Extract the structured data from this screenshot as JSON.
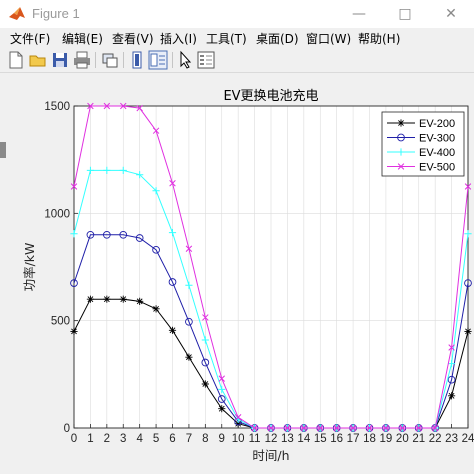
{
  "window": {
    "title": "Figure 1",
    "icon": "matlab-logo-icon",
    "controls": [
      "minimize-icon",
      "maximize-icon",
      "close-icon"
    ]
  },
  "menu": {
    "items": [
      "文件(F)",
      "编辑(E)",
      "查看(V)",
      "插入(I)",
      "工具(T)",
      "桌面(D)",
      "窗口(W)",
      "帮助(H)"
    ]
  },
  "toolbar": {
    "icons": [
      "new-figure-icon",
      "open-file-icon",
      "save-icon",
      "print-icon",
      "link-figure-icon",
      "hide-plot-tools-icon",
      "show-plot-tools-icon",
      "edit-plot-arrow-icon",
      "insert-legend-icon"
    ]
  },
  "colors": {
    "EV-200": "#000000",
    "EV-300": "#1f1fa8",
    "EV-400": "#33ffff",
    "EV-500": "#e030e0"
  },
  "chart_data": {
    "type": "line",
    "title": "EV更换电池充电",
    "xlabel": "时间/h",
    "ylabel": "功率/kW",
    "xlim": [
      0,
      24
    ],
    "ylim": [
      0,
      1500
    ],
    "xticks": [
      0,
      1,
      2,
      3,
      4,
      5,
      6,
      7,
      8,
      9,
      10,
      11,
      12,
      13,
      14,
      15,
      16,
      17,
      18,
      19,
      20,
      21,
      22,
      23,
      24
    ],
    "yticks": [
      0,
      500,
      1000,
      1500
    ],
    "grid": true,
    "legend_position": "top-right",
    "x": [
      0,
      1,
      2,
      3,
      4,
      5,
      6,
      7,
      8,
      9,
      10,
      11,
      12,
      13,
      14,
      15,
      16,
      17,
      18,
      19,
      20,
      21,
      22,
      23,
      24
    ],
    "series": [
      {
        "name": "EV-200",
        "marker": "*",
        "values": [
          450,
          600,
          600,
          600,
          590,
          555,
          455,
          330,
          205,
          90,
          20,
          0,
          0,
          0,
          0,
          0,
          0,
          0,
          0,
          0,
          0,
          0,
          0,
          150,
          450
        ]
      },
      {
        "name": "EV-300",
        "marker": "o",
        "values": [
          675,
          900,
          900,
          900,
          885,
          830,
          680,
          495,
          305,
          135,
          30,
          0,
          0,
          0,
          0,
          0,
          0,
          0,
          0,
          0,
          0,
          0,
          0,
          225,
          675
        ]
      },
      {
        "name": "EV-400",
        "marker": "+",
        "values": [
          905,
          1200,
          1200,
          1200,
          1180,
          1105,
          910,
          665,
          410,
          180,
          40,
          0,
          0,
          0,
          0,
          0,
          0,
          0,
          0,
          0,
          0,
          0,
          0,
          300,
          905
        ]
      },
      {
        "name": "EV-500",
        "marker": "x",
        "values": [
          1125,
          1500,
          1500,
          1500,
          1490,
          1385,
          1140,
          835,
          515,
          230,
          50,
          0,
          0,
          0,
          0,
          0,
          0,
          0,
          0,
          0,
          0,
          0,
          0,
          375,
          1125
        ]
      }
    ]
  }
}
